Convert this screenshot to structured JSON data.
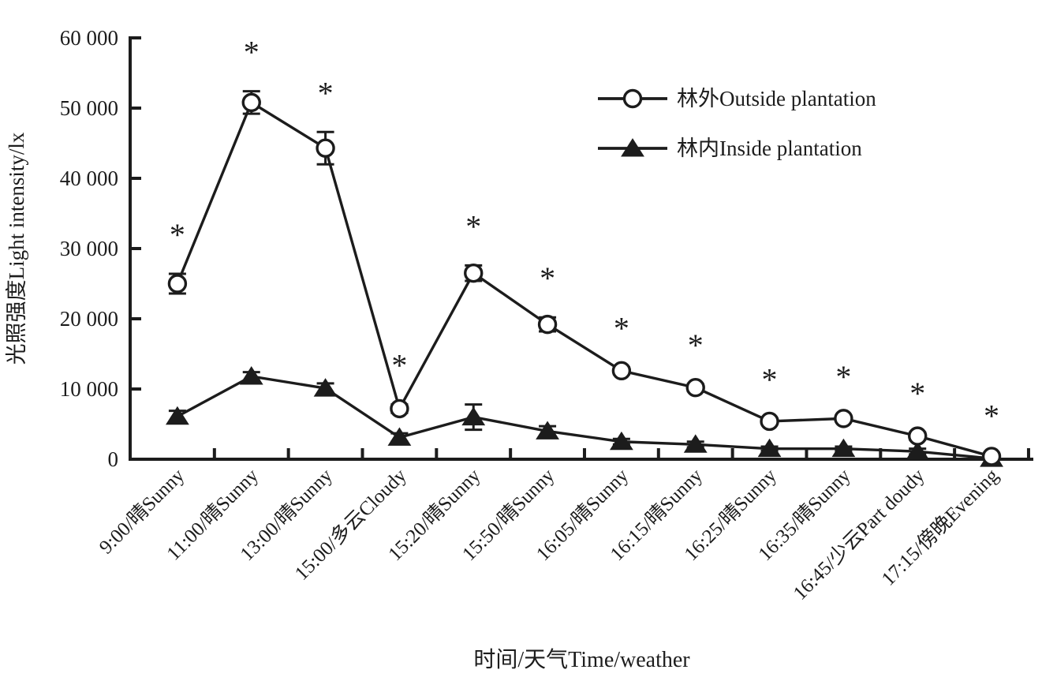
{
  "figure": {
    "background_color": "#ffffff",
    "ink_color": "#1c1c1c"
  },
  "chart_data": {
    "type": "line",
    "title": "",
    "xlabel": "时间/天气Time/weather",
    "ylabel": "光照强度Light intensity/lx",
    "ylim": [
      0,
      60000
    ],
    "ytick_values": [
      0,
      10000,
      20000,
      30000,
      40000,
      50000,
      60000
    ],
    "ytick_labels": [
      "0",
      "10 000",
      "20 000",
      "30 000",
      "40 000",
      "50 000",
      "60 000"
    ],
    "grid": false,
    "legend_position": "inside-top-right",
    "categories": [
      "9:00/晴Sunny",
      "11:00/晴Sunny",
      "13:00/晴Sunny",
      "15:00/多云Cloudy",
      "15:20/晴Sunny",
      "15:50/晴Sunny",
      "16:05/晴Sunny",
      "16:15/晴Sunny",
      "16:25/晴Sunny",
      "16:35/晴Sunny",
      "16:45/少云Part doudy",
      "17:15/傍晚Evening"
    ],
    "series": [
      {
        "name": "林外Outside plantation",
        "marker": "open-circle",
        "values": [
          25000,
          50800,
          44300,
          7200,
          26500,
          19200,
          12600,
          10200,
          5400,
          5800,
          3300,
          400
        ],
        "errors": [
          1400,
          1600,
          2300,
          600,
          1100,
          1000,
          500,
          500,
          400,
          400,
          500,
          200
        ]
      },
      {
        "name": "林内Inside plantation",
        "marker": "filled-triangle",
        "values": [
          6100,
          11800,
          10100,
          3100,
          6000,
          4000,
          2500,
          2100,
          1500,
          1500,
          1100,
          100
        ],
        "errors": [
          800,
          600,
          700,
          600,
          1800,
          700,
          400,
          400,
          300,
          300,
          400,
          100
        ]
      }
    ],
    "annotations": {
      "significance_symbol": "*",
      "applies_to": "all categories, placed above the Outside plantation series"
    }
  }
}
